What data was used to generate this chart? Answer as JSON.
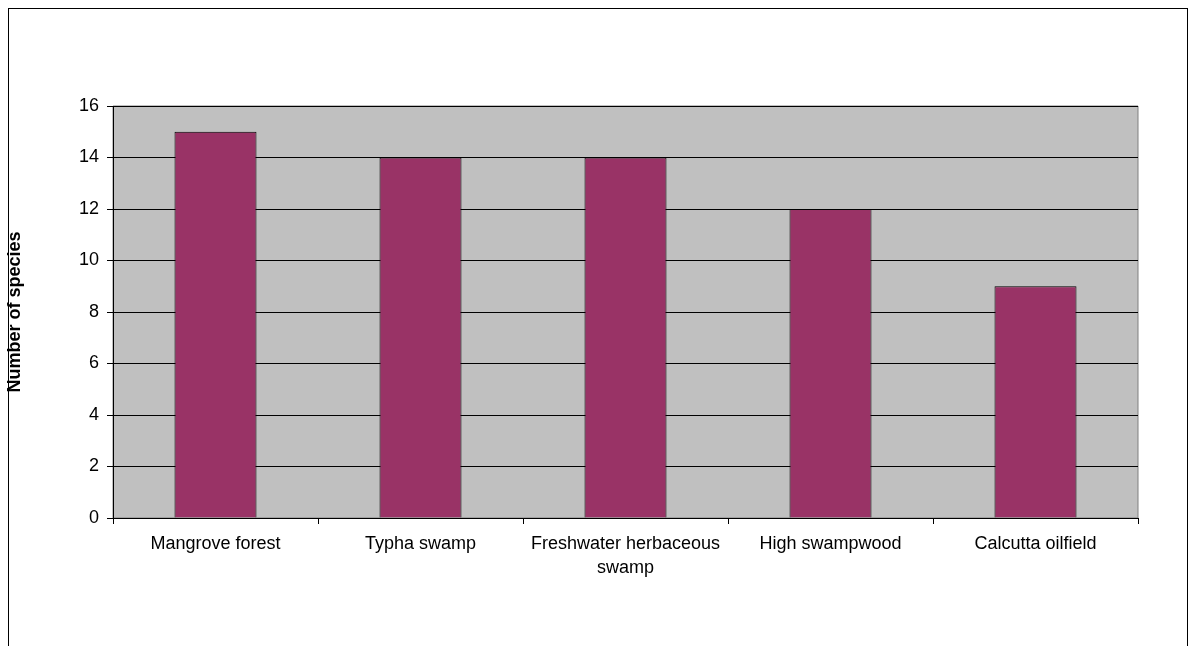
{
  "chart_data": {
    "type": "bar",
    "ylabel": "Number of species",
    "categories": [
      "Mangrove forest",
      "Typha swamp",
      "Freshwater herbaceous swamp",
      "High swampwood",
      "Calcutta oilfield"
    ],
    "values": [
      15,
      14,
      14,
      12,
      9
    ],
    "color": "#993366",
    "ylim": [
      0,
      16
    ],
    "yticks": [
      0,
      2,
      4,
      6,
      8,
      10,
      12,
      14,
      16
    ],
    "grid": "y",
    "legend": false
  }
}
